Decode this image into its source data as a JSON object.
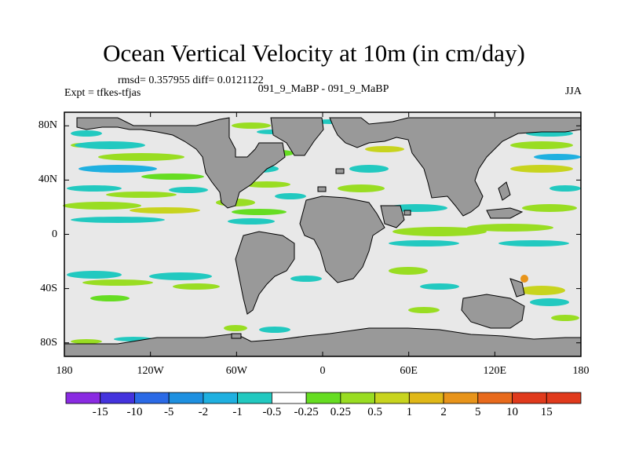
{
  "title": "Ocean Vertical Velocity at 10m (in cm/day)",
  "stats": "rmsd= 0.357955 diff= 0.0121122",
  "experiment": "Expt = tfkes-tfjas",
  "comparison": "091_9_MaBP - 091_9_MaBP",
  "season": "JJA",
  "axes": {
    "y_ticks": [
      {
        "value": 80,
        "label": "80N"
      },
      {
        "value": 40,
        "label": "40N"
      },
      {
        "value": 0,
        "label": "0"
      },
      {
        "value": -40,
        "label": "40S"
      },
      {
        "value": -80,
        "label": "80S"
      }
    ],
    "x_ticks": [
      {
        "value": -180,
        "label": "180"
      },
      {
        "value": -120,
        "label": "120W"
      },
      {
        "value": -60,
        "label": "60W"
      },
      {
        "value": 0,
        "label": "0"
      },
      {
        "value": 60,
        "label": "60E"
      },
      {
        "value": 120,
        "label": "120E"
      },
      {
        "value": 180,
        "label": "180"
      }
    ],
    "lon_range": [
      -180,
      180
    ],
    "lat_range": [
      -90,
      90
    ]
  },
  "colors": {
    "land": "#999999",
    "ocean_neutral": "#e8e8e8",
    "frame": "#000000"
  },
  "colorbar": {
    "colors": [
      "#8a2be2",
      "#4433dd",
      "#2b6ae6",
      "#1e90e0",
      "#1fb0e0",
      "#22c9c0",
      "#ffffff",
      "#66dd22",
      "#99dd22",
      "#c8d41e",
      "#e0b818",
      "#e8941a",
      "#e86a1c",
      "#e03a1c"
    ],
    "labels": [
      "-15",
      "-10",
      "-5",
      "-2",
      "-1",
      "-0.5",
      "-0.25",
      "0.25",
      "0.5",
      "1",
      "2",
      "5",
      "10",
      "15"
    ]
  }
}
